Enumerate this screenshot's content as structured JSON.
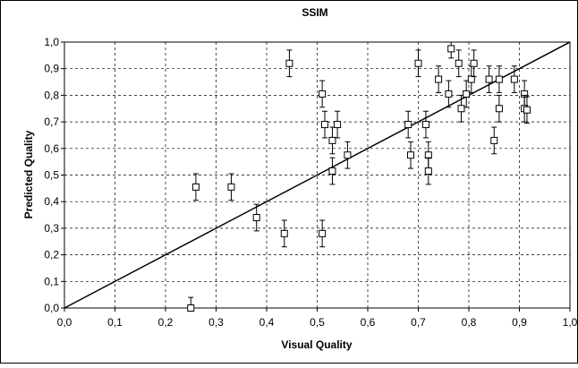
{
  "chart_data": {
    "type": "scatter",
    "title": "SSIM",
    "xlabel": "Visual Quality",
    "ylabel": "Predicted Quality",
    "xlim": [
      0,
      1
    ],
    "ylim": [
      0,
      1
    ],
    "x_ticks": [
      "0,0",
      "0,1",
      "0,2",
      "0,3",
      "0,4",
      "0,5",
      "0,6",
      "0,7",
      "0,8",
      "0,9",
      "1,0"
    ],
    "y_ticks": [
      "0,0",
      "0,1",
      "0,2",
      "0,3",
      "0,4",
      "0,5",
      "0,6",
      "0,7",
      "0,8",
      "0,9",
      "1,0"
    ],
    "grid": true,
    "reference_line": {
      "x": [
        0,
        1
      ],
      "y": [
        0,
        1
      ]
    },
    "points": [
      {
        "x": 0.25,
        "y": 0.0,
        "err": 0.04
      },
      {
        "x": 0.26,
        "y": 0.455,
        "err": 0.05
      },
      {
        "x": 0.33,
        "y": 0.455,
        "err": 0.05
      },
      {
        "x": 0.38,
        "y": 0.34,
        "err": 0.05
      },
      {
        "x": 0.435,
        "y": 0.28,
        "err": 0.05
      },
      {
        "x": 0.445,
        "y": 0.92,
        "err": 0.05
      },
      {
        "x": 0.51,
        "y": 0.28,
        "err": 0.05
      },
      {
        "x": 0.51,
        "y": 0.805,
        "err": 0.05
      },
      {
        "x": 0.515,
        "y": 0.69,
        "err": 0.05
      },
      {
        "x": 0.53,
        "y": 0.515,
        "err": 0.05
      },
      {
        "x": 0.53,
        "y": 0.63,
        "err": 0.05
      },
      {
        "x": 0.54,
        "y": 0.69,
        "err": 0.05
      },
      {
        "x": 0.56,
        "y": 0.575,
        "err": 0.05
      },
      {
        "x": 0.68,
        "y": 0.69,
        "err": 0.05
      },
      {
        "x": 0.685,
        "y": 0.575,
        "err": 0.05
      },
      {
        "x": 0.7,
        "y": 0.92,
        "err": 0.05
      },
      {
        "x": 0.715,
        "y": 0.69,
        "err": 0.05
      },
      {
        "x": 0.72,
        "y": 0.575,
        "err": 0.05
      },
      {
        "x": 0.72,
        "y": 0.515,
        "err": 0.05
      },
      {
        "x": 0.74,
        "y": 0.86,
        "err": 0.05
      },
      {
        "x": 0.76,
        "y": 0.805,
        "err": 0.05
      },
      {
        "x": 0.765,
        "y": 0.975,
        "err": 0.035
      },
      {
        "x": 0.78,
        "y": 0.92,
        "err": 0.05
      },
      {
        "x": 0.785,
        "y": 0.75,
        "err": 0.05
      },
      {
        "x": 0.795,
        "y": 0.805,
        "err": 0.05
      },
      {
        "x": 0.805,
        "y": 0.86,
        "err": 0.05
      },
      {
        "x": 0.81,
        "y": 0.92,
        "err": 0.05
      },
      {
        "x": 0.84,
        "y": 0.86,
        "err": 0.05
      },
      {
        "x": 0.85,
        "y": 0.63,
        "err": 0.05
      },
      {
        "x": 0.86,
        "y": 0.75,
        "err": 0.05
      },
      {
        "x": 0.86,
        "y": 0.86,
        "err": 0.05
      },
      {
        "x": 0.89,
        "y": 0.86,
        "err": 0.05
      },
      {
        "x": 0.91,
        "y": 0.805,
        "err": 0.05
      },
      {
        "x": 0.91,
        "y": 0.75,
        "err": 0.05
      },
      {
        "x": 0.915,
        "y": 0.745,
        "err": 0.05
      }
    ]
  }
}
